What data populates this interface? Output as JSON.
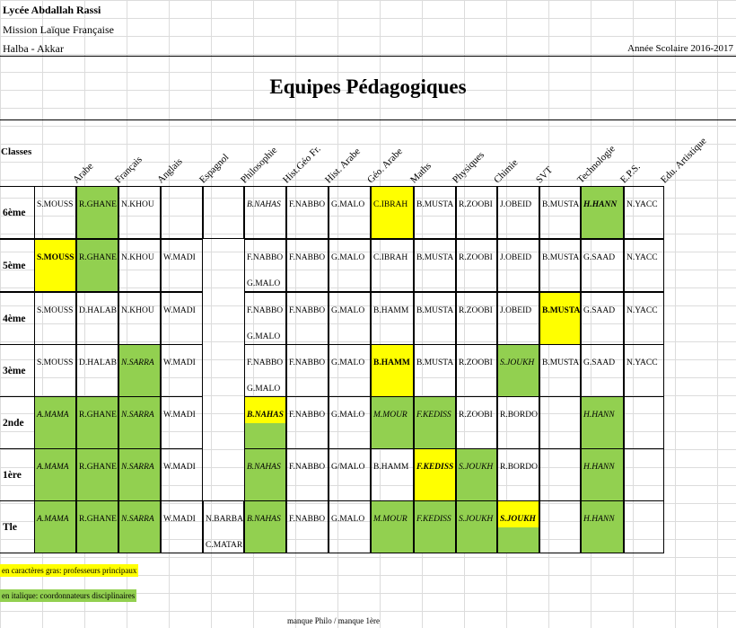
{
  "header": {
    "school": "Lycée Abdallah Rassi",
    "mission": "Mission Laïque Française",
    "location": "Halba - Akkar",
    "year": "Année Scolaire 2016-2017"
  },
  "title": "Equipes Pédagogiques",
  "classes_label": "Classes",
  "subjects": [
    "Arabe",
    "Français",
    "Anglais",
    "Espagnol",
    "Philosophie",
    "Hist.Géo Fr.",
    "Hist. Arabe",
    "Géo. Arabe",
    "Maths",
    "Physiques",
    "Chimie",
    "SVT",
    "Technologie",
    "E.P.S.",
    "Edu. Artistique"
  ],
  "rows": [
    {
      "label": "6ème",
      "cells": [
        {
          "t": "S.MOUSS"
        },
        {
          "t": "R.GHANE",
          "bg": "g"
        },
        {
          "t": "N.KHOU"
        },
        {
          "t": ""
        },
        {
          "t": ""
        },
        {
          "t": "B.NAHAS",
          "i": true
        },
        {
          "t": "F.NABBO"
        },
        {
          "t": "G.MALO"
        },
        {
          "t": "C.IBRAH",
          "bg": "y"
        },
        {
          "t": "B.MUSTA"
        },
        {
          "t": "R.ZOOBI"
        },
        {
          "t": "J.OBEID"
        },
        {
          "t": "B.MUSTA"
        },
        {
          "t": "H.HANN",
          "bg": "g",
          "b": true,
          "i": true
        },
        {
          "t": "N.YACC"
        }
      ]
    },
    {
      "label": "5ème",
      "cells": [
        {
          "t": "S.MOUSS",
          "bg": "y",
          "b": true
        },
        {
          "t": "R.GHANE",
          "bg": "g"
        },
        {
          "t": "N.KHOU"
        },
        {
          "t": "W.MADI"
        },
        {
          "t": "F.NABBO",
          "t2": "G.MALO"
        },
        {
          "t": "F.NABBO"
        },
        {
          "t": "G.MALO"
        },
        {
          "t": "C.IBRAH"
        },
        {
          "t": "B.MUSTA"
        },
        {
          "t": "R.ZOOBI"
        },
        {
          "t": "J.OBEID"
        },
        {
          "t": "B.MUSTA"
        },
        {
          "t": "G.SAAD"
        },
        {
          "t": "N.YACC"
        }
      ]
    },
    {
      "label": "4ème",
      "cells": [
        {
          "t": "S.MOUSS"
        },
        {
          "t": "D.HALAB"
        },
        {
          "t": "N.KHOU"
        },
        {
          "t": "W.MADI"
        },
        {
          "t": "F.NABBO",
          "t2": "G.MALO"
        },
        {
          "t": "F.NABBO"
        },
        {
          "t": "G.MALO"
        },
        {
          "t": "B.HAMM"
        },
        {
          "t": "B.MUSTA"
        },
        {
          "t": "R.ZOOBI"
        },
        {
          "t": "J.OBEID"
        },
        {
          "t": "B.MUSTA",
          "bg": "y",
          "b": true
        },
        {
          "t": "G.SAAD"
        },
        {
          "t": "N.YACC"
        }
      ]
    },
    {
      "label": "3ème",
      "cells": [
        {
          "t": "S.MOUSS"
        },
        {
          "t": "D.HALAB"
        },
        {
          "t": "N.SARRA",
          "bg": "g",
          "i": true
        },
        {
          "t": "W.MADI"
        },
        {
          "t": "F.NABBO",
          "t2": "G.MALO"
        },
        {
          "t": "F.NABBO"
        },
        {
          "t": "G.MALO"
        },
        {
          "t": "B.HAMM",
          "bg": "y",
          "b": true
        },
        {
          "t": "B.MUSTA"
        },
        {
          "t": "R.ZOOBI"
        },
        {
          "t": "S.JOUKH",
          "bg": "g",
          "i": true
        },
        {
          "t": "B.MUSTA"
        },
        {
          "t": "G.SAAD"
        },
        {
          "t": "N.YACC"
        }
      ]
    },
    {
      "label": "2nde",
      "cells": [
        {
          "t": "A.MAMA",
          "bg": "g",
          "i": true
        },
        {
          "t": "R.GHANE",
          "bg": "g"
        },
        {
          "t": "N.SARRA",
          "bg": "g",
          "i": true
        },
        {
          "t": "W.MADI"
        },
        {
          "t": "B.NAHAS",
          "bg": "y",
          "b": true,
          "i": true,
          "split": "g"
        },
        {
          "t": "F.NABBO"
        },
        {
          "t": "G.MALO"
        },
        {
          "t": "M.MOUR",
          "bg": "g",
          "i": true
        },
        {
          "t": "F.KEDISS",
          "bg": "g",
          "i": true
        },
        {
          "t": "R.ZOOBI"
        },
        {
          "t": "R.BORDO"
        },
        {
          "t": ""
        },
        {
          "t": "H.HANN",
          "bg": "g",
          "i": true
        },
        {
          "t": ""
        }
      ]
    },
    {
      "label": "1ère",
      "cells": [
        {
          "t": "A.MAMA",
          "bg": "g",
          "i": true
        },
        {
          "t": "R.GHANE",
          "bg": "g"
        },
        {
          "t": "N.SARRA",
          "bg": "g",
          "i": true
        },
        {
          "t": "W.MADI"
        },
        {
          "t": "B.NAHAS",
          "bg": "g",
          "i": true
        },
        {
          "t": "F.NABBO"
        },
        {
          "t": "G/MALO"
        },
        {
          "t": "B.HAMM"
        },
        {
          "t": "F.KEDISS",
          "bg": "y",
          "b": true,
          "i": true
        },
        {
          "t": "S.JOUKH",
          "bg": "g",
          "i": true
        },
        {
          "t": "R.BORDO"
        },
        {
          "t": ""
        },
        {
          "t": "H.HANN",
          "bg": "g",
          "i": true
        },
        {
          "t": ""
        }
      ]
    },
    {
      "label": "Tle",
      "cells": [
        {
          "t": "A.MAMA",
          "bg": "g",
          "i": true
        },
        {
          "t": "R.GHANE",
          "bg": "g"
        },
        {
          "t": "N.SARRA",
          "bg": "g",
          "i": true
        },
        {
          "t": "W.MADI"
        },
        {
          "t": "N.BARBA",
          "t2": "C.MATAR"
        },
        {
          "t": "B.NAHAS",
          "bg": "g",
          "i": true
        },
        {
          "t": "F.NABBO"
        },
        {
          "t": "G.MALO"
        },
        {
          "t": "M.MOUR",
          "bg": "g",
          "i": true
        },
        {
          "t": "F.KEDISS",
          "bg": "g",
          "i": true
        },
        {
          "t": "S.JOUKH",
          "bg": "g",
          "i": true
        },
        {
          "t": "S.JOUKH",
          "bg": "y",
          "b": true,
          "i": true,
          "split": "g"
        },
        {
          "t": ""
        },
        {
          "t": "H.HANN",
          "bg": "g",
          "i": true
        },
        {
          "t": ""
        }
      ]
    }
  ],
  "legend": {
    "bold": "en caractères gras: professeurs principaux",
    "italic": "en italique: coordonnateurs disciplinaires"
  },
  "note": "manque Philo / manque 1ère",
  "colors": {
    "yellow": "#ffff00",
    "green": "#92d050"
  }
}
